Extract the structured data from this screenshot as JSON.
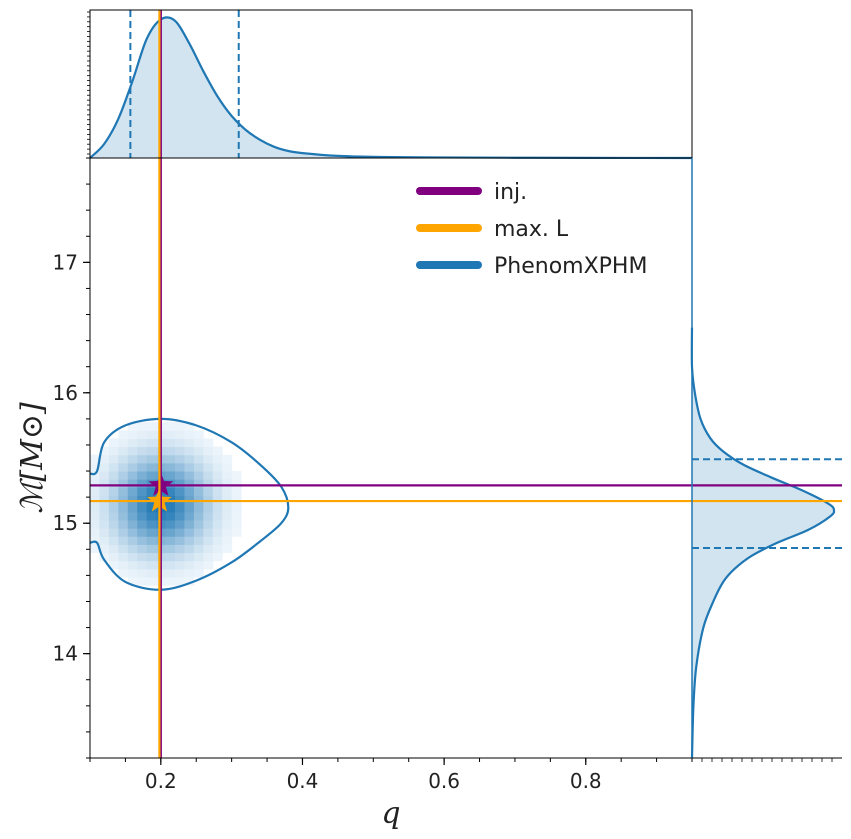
{
  "chart_data": {
    "type": "scatter",
    "subtype": "corner-plot",
    "xlabel": "q",
    "ylabel": "ℳ[M⊙]",
    "xlim": [
      0.1,
      0.95
    ],
    "ylim": [
      13.2,
      17.8
    ],
    "x_ticks": [
      0.2,
      0.4,
      0.6,
      0.8
    ],
    "y_ticks": [
      14,
      15,
      16,
      17
    ],
    "x_tick_labels": [
      "0.2",
      "0.4",
      "0.6",
      "0.8"
    ],
    "y_tick_labels": [
      "14",
      "15",
      "16",
      "17"
    ],
    "legend_position": "top-center",
    "legend": [
      {
        "label": "inj.",
        "color": "#800080"
      },
      {
        "label": "max. L",
        "color": "#ffa500"
      },
      {
        "label": "PhenomXPHM",
        "color": "#1f77b4"
      }
    ],
    "injection": {
      "q": 0.2,
      "mc": 15.29,
      "color": "#800080"
    },
    "max_likelihood": {
      "q": 0.198,
      "mc": 15.17,
      "color": "#ffa500"
    },
    "q_credible_interval": [
      0.157,
      0.31
    ],
    "mc_credible_interval": [
      14.81,
      15.49
    ],
    "q_marginal": {
      "x": [
        0.1,
        0.12,
        0.14,
        0.16,
        0.18,
        0.2,
        0.22,
        0.24,
        0.26,
        0.28,
        0.3,
        0.32,
        0.34,
        0.36,
        0.38,
        0.4,
        0.45,
        0.5,
        0.6,
        0.7,
        0.8,
        0.95
      ],
      "density": [
        0.0,
        0.1,
        0.28,
        0.55,
        0.85,
        0.99,
        0.98,
        0.82,
        0.62,
        0.44,
        0.3,
        0.2,
        0.13,
        0.08,
        0.05,
        0.035,
        0.015,
        0.008,
        0.004,
        0.002,
        0.001,
        0.0
      ]
    },
    "mc_marginal": {
      "y": [
        13.2,
        13.6,
        13.9,
        14.2,
        14.4,
        14.55,
        14.65,
        14.75,
        14.85,
        14.95,
        15.05,
        15.1,
        15.15,
        15.25,
        15.35,
        15.45,
        15.55,
        15.65,
        15.8,
        16.0,
        16.2,
        16.5
      ],
      "density": [
        0.0,
        0.01,
        0.03,
        0.08,
        0.15,
        0.22,
        0.3,
        0.42,
        0.6,
        0.82,
        0.97,
        1.0,
        0.96,
        0.78,
        0.56,
        0.36,
        0.22,
        0.13,
        0.06,
        0.02,
        0.0,
        0.0
      ]
    },
    "contour_90": {
      "q": [
        0.1,
        0.11,
        0.12,
        0.15,
        0.2,
        0.25,
        0.3,
        0.34,
        0.37,
        0.38,
        0.37,
        0.34,
        0.3,
        0.25,
        0.2,
        0.15,
        0.12,
        0.11,
        0.1
      ],
      "mc": [
        14.85,
        14.85,
        14.72,
        14.55,
        14.49,
        14.56,
        14.7,
        14.86,
        15.0,
        15.12,
        15.28,
        15.45,
        15.62,
        15.75,
        15.8,
        15.75,
        15.62,
        15.4,
        15.38
      ]
    },
    "density_2d": {
      "center": [
        0.2,
        15.15
      ],
      "sigma": [
        0.045,
        0.25
      ]
    }
  }
}
